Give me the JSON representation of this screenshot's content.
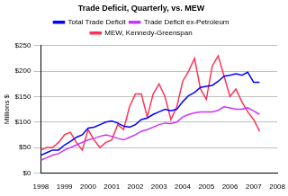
{
  "chart_data": {
    "type": "line",
    "title": "Trade Deficit, Quarterly, vs. MEW",
    "y_label": "Millions $",
    "x": [
      1998,
      1998.25,
      1998.5,
      1998.75,
      1999,
      1999.25,
      1999.5,
      1999.75,
      2000,
      2000.25,
      2000.5,
      2000.75,
      2001,
      2001.25,
      2001.5,
      2001.75,
      2002,
      2002.25,
      2002.5,
      2002.75,
      2003,
      2003.25,
      2003.5,
      2003.75,
      2004,
      2004.25,
      2004.5,
      2004.75,
      2005,
      2005.25,
      2005.5,
      2005.75,
      2006,
      2006.25,
      2006.5,
      2006.75,
      2007,
      2007.25
    ],
    "series": [
      {
        "name": "Total Trade Deficit",
        "color": "#0000ff",
        "values": [
          35,
          40,
          45,
          45,
          55,
          62,
          70,
          75,
          88,
          90,
          95,
          100,
          102,
          98,
          92,
          90,
          95,
          105,
          108,
          115,
          120,
          125,
          122,
          125,
          140,
          152,
          158,
          168,
          170,
          172,
          180,
          190,
          192,
          195,
          192,
          198,
          178,
          178
        ]
      },
      {
        "name": "Trade Deficit ex-Petroleum",
        "color": "#cc33ff",
        "values": [
          25,
          30,
          35,
          38,
          45,
          50,
          55,
          60,
          65,
          68,
          72,
          75,
          72,
          68,
          65,
          70,
          75,
          82,
          85,
          90,
          95,
          98,
          97,
          100,
          110,
          115,
          118,
          120,
          120,
          120,
          123,
          130,
          128,
          125,
          125,
          128,
          122,
          115
        ]
      },
      {
        "name": "MEW, Kennedy-Greenspan",
        "color": "#ff3355",
        "values": [
          45,
          50,
          50,
          60,
          75,
          80,
          60,
          45,
          85,
          65,
          50,
          60,
          65,
          95,
          85,
          130,
          155,
          155,
          110,
          155,
          175,
          150,
          105,
          130,
          180,
          200,
          225,
          165,
          145,
          210,
          230,
          190,
          150,
          165,
          140,
          120,
          105,
          82
        ]
      }
    ],
    "xlim": [
      1998,
      2008
    ],
    "xticks": [
      1998,
      1999,
      2000,
      2001,
      2002,
      2003,
      2004,
      2005,
      2006,
      2007,
      2008
    ],
    "ylim": [
      0,
      250
    ],
    "yticks": [
      {
        "value": 0,
        "label": "$0"
      },
      {
        "value": 50,
        "label": "$50"
      },
      {
        "value": 100,
        "label": "$100"
      },
      {
        "value": 150,
        "label": "$150"
      },
      {
        "value": 200,
        "label": "$200"
      },
      {
        "value": 250,
        "label": "$250"
      }
    ],
    "grid": true,
    "legend": "top",
    "marker": "none"
  }
}
